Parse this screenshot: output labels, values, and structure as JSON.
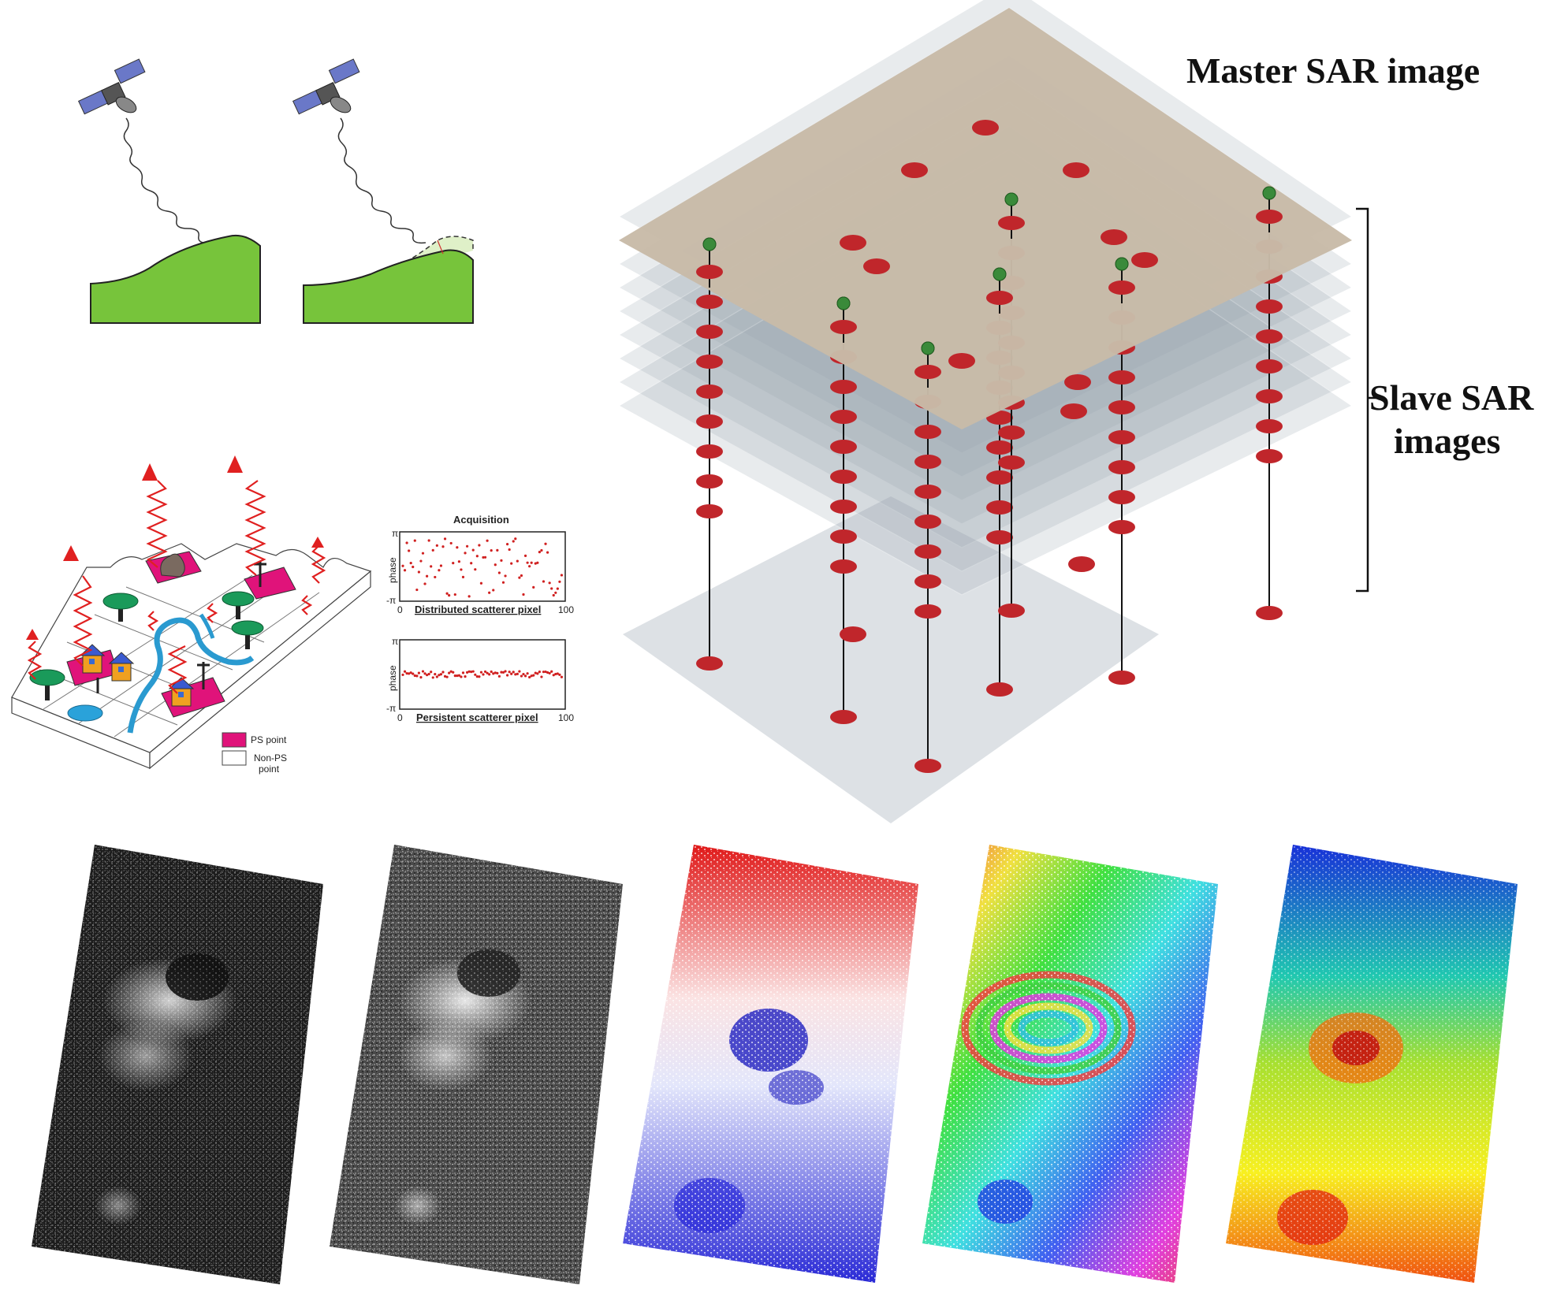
{
  "stack": {
    "master_label": "Master SAR image",
    "slave_label_line1": "Slave SAR",
    "slave_label_line2": "images"
  },
  "ps_panel": {
    "legend_ps": "PS point",
    "legend_non_ps_line1": "Non-PS",
    "legend_non_ps_line2": "point"
  },
  "plots": {
    "title": "Acquisition",
    "y_label": "phase",
    "y_top": "π",
    "y_bottom": "-π",
    "x_start": "0",
    "x_end": "100",
    "distributed_caption": "Distributed scatterer pixel",
    "persistent_caption": "Persistent scatterer pixel"
  },
  "colors": {
    "master_plane": "#c8bba8",
    "slave_plane": "#9aa6b0",
    "base_plane": "#dde1e5",
    "scatterer": "#c0262b",
    "marker": "#3a8a3a",
    "terrain": "#77c43b",
    "ps_point": "#e0137a"
  }
}
